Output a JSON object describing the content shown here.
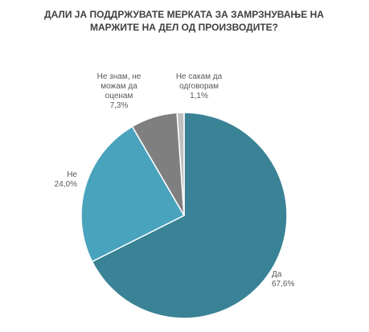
{
  "chart_data": {
    "type": "pie",
    "title": "ДАЛИ ЈА ПОДДРЖУВАТЕ МЕРКАТА ЗА ЗАМРЗНУВАЊЕ НА МАРЖИТЕ НА ДЕЛ ОД ПРОИЗВОДИТЕ?",
    "categories": [
      "Да",
      "Не",
      "Не знам, не можам да оценам",
      "Не сакам да одговорам"
    ],
    "values": [
      67.6,
      24.0,
      7.3,
      1.1
    ],
    "value_labels": [
      "67,6%",
      "24,0%",
      "7,3%",
      "1,1%"
    ],
    "colors": [
      "#3a8296",
      "#4aa3bd",
      "#7f7f7f",
      "#bfbfbf"
    ]
  }
}
